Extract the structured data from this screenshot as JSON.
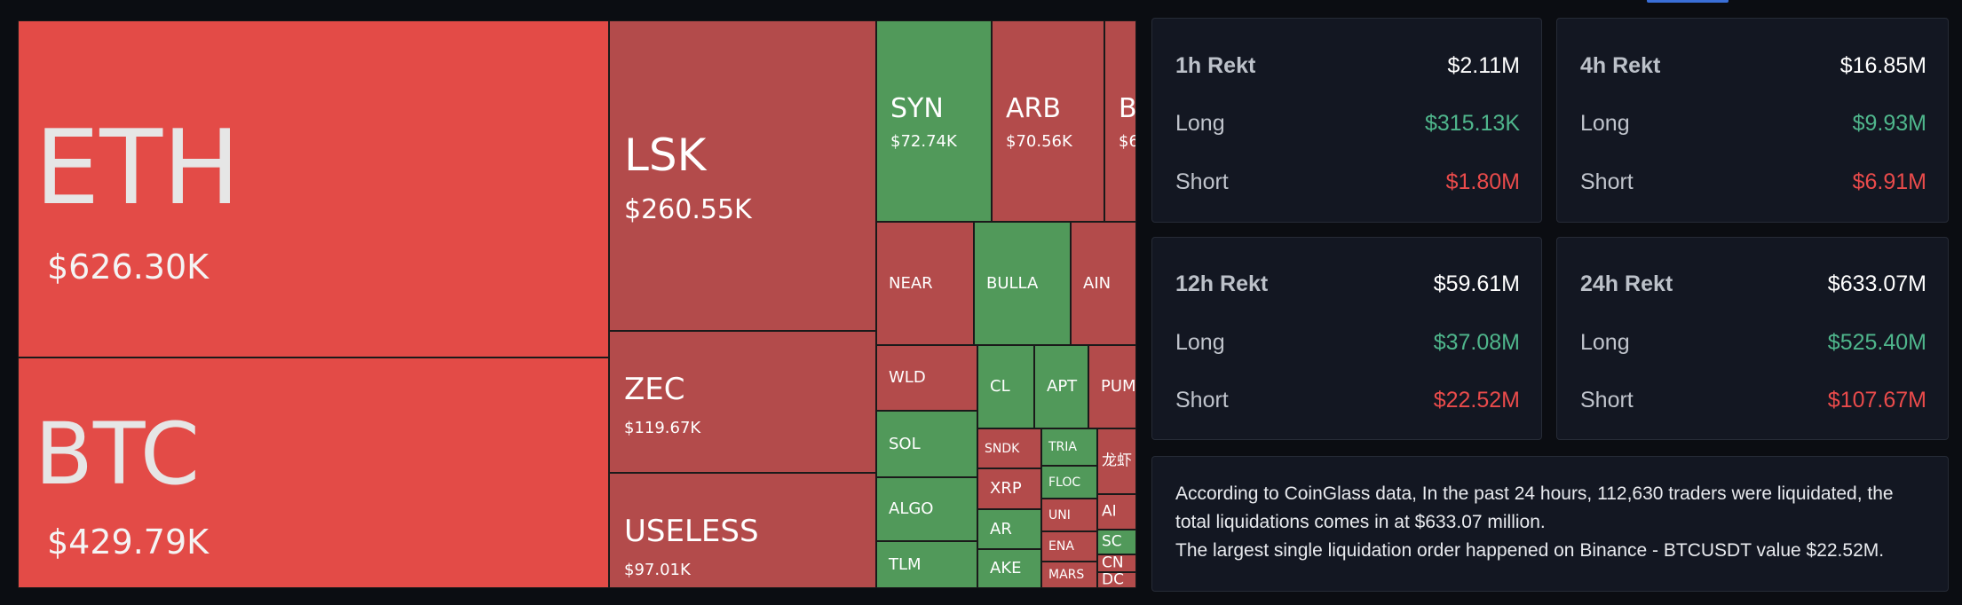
{
  "treemap": {
    "tiles": [
      {
        "name": "tile-eth",
        "symbol": "ETH",
        "value": "$626.30K",
        "color": "bright",
        "size": "s-xl",
        "l": 0,
        "t": 0,
        "w": 666,
        "h": 380
      },
      {
        "name": "tile-btc",
        "symbol": "BTC",
        "value": "$429.79K",
        "color": "bright",
        "size": "s-xl2",
        "l": 0,
        "t": 380,
        "w": 666,
        "h": 260
      },
      {
        "name": "tile-lsk",
        "symbol": "LSK",
        "value": "$260.55K",
        "color": "red",
        "size": "s-lg",
        "l": 666,
        "t": 0,
        "w": 301,
        "h": 350
      },
      {
        "name": "tile-zec",
        "symbol": "ZEC",
        "value": "$119.67K",
        "color": "red",
        "size": "s-md",
        "l": 666,
        "t": 350,
        "w": 301,
        "h": 160
      },
      {
        "name": "tile-useless",
        "symbol": "USELESS",
        "value": "$97.01K",
        "color": "red",
        "size": "s-md",
        "l": 666,
        "t": 510,
        "w": 301,
        "h": 130
      },
      {
        "name": "tile-syn",
        "symbol": "SYN",
        "value": "$72.74K",
        "color": "green",
        "size": "s-sm",
        "l": 967,
        "t": 0,
        "w": 130,
        "h": 227
      },
      {
        "name": "tile-arb",
        "symbol": "ARB",
        "value": "$70.56K",
        "color": "red",
        "size": "s-sm",
        "l": 1097,
        "t": 0,
        "w": 127,
        "h": 227
      },
      {
        "name": "tile-b",
        "symbol": "B",
        "value": "$6",
        "color": "red",
        "size": "s-sm",
        "l": 1224,
        "t": 0,
        "w": 36,
        "h": 227
      },
      {
        "name": "tile-near",
        "symbol": "NEAR",
        "value": "",
        "color": "red",
        "size": "s-xs",
        "l": 967,
        "t": 227,
        "w": 110,
        "h": 139
      },
      {
        "name": "tile-bulla",
        "symbol": "BULLA",
        "value": "",
        "color": "green",
        "size": "s-xs",
        "l": 1077,
        "t": 227,
        "w": 109,
        "h": 139
      },
      {
        "name": "tile-ain",
        "symbol": "AIN",
        "value": "",
        "color": "red",
        "size": "s-xs",
        "l": 1186,
        "t": 227,
        "w": 74,
        "h": 139
      },
      {
        "name": "tile-wld",
        "symbol": "WLD",
        "value": "",
        "color": "red",
        "size": "s-xs",
        "l": 967,
        "t": 366,
        "w": 114,
        "h": 74
      },
      {
        "name": "tile-sol",
        "symbol": "SOL",
        "value": "",
        "color": "green",
        "size": "s-xs",
        "l": 967,
        "t": 440,
        "w": 114,
        "h": 75
      },
      {
        "name": "tile-algo",
        "symbol": "ALGO",
        "value": "",
        "color": "green",
        "size": "s-xs",
        "l": 967,
        "t": 515,
        "w": 114,
        "h": 72
      },
      {
        "name": "tile-tlm",
        "symbol": "TLM",
        "value": "",
        "color": "green",
        "size": "s-xs",
        "l": 967,
        "t": 587,
        "w": 114,
        "h": 53
      },
      {
        "name": "tile-cl",
        "symbol": "CL",
        "value": "",
        "color": "green",
        "size": "s-xs",
        "l": 1081,
        "t": 366,
        "w": 64,
        "h": 94
      },
      {
        "name": "tile-apt",
        "symbol": "APT",
        "value": "",
        "color": "green",
        "size": "s-xs",
        "l": 1145,
        "t": 366,
        "w": 61,
        "h": 94
      },
      {
        "name": "tile-pum",
        "symbol": "PUM",
        "value": "",
        "color": "red",
        "size": "s-xs",
        "l": 1206,
        "t": 366,
        "w": 54,
        "h": 94
      },
      {
        "name": "tile-sndk",
        "symbol": "SNDK",
        "value": "",
        "color": "red",
        "size": "s-xxs",
        "l": 1081,
        "t": 460,
        "w": 72,
        "h": 45
      },
      {
        "name": "tile-xrp",
        "symbol": "XRP",
        "value": "",
        "color": "red",
        "size": "s-xs",
        "l": 1081,
        "t": 505,
        "w": 72,
        "h": 46
      },
      {
        "name": "tile-ar",
        "symbol": "AR",
        "value": "",
        "color": "green",
        "size": "s-xs",
        "l": 1081,
        "t": 551,
        "w": 72,
        "h": 45
      },
      {
        "name": "tile-ake",
        "symbol": "AKE",
        "value": "",
        "color": "green",
        "size": "s-xs",
        "l": 1081,
        "t": 596,
        "w": 72,
        "h": 44
      },
      {
        "name": "tile-tria",
        "symbol": "TRIA",
        "value": "",
        "color": "green",
        "size": "s-xxs",
        "l": 1153,
        "t": 460,
        "w": 63,
        "h": 42
      },
      {
        "name": "tile-floc",
        "symbol": "FLOC",
        "value": "",
        "color": "green",
        "size": "s-xxs",
        "l": 1153,
        "t": 502,
        "w": 63,
        "h": 37
      },
      {
        "name": "tile-uni",
        "symbol": "UNI",
        "value": "",
        "color": "red",
        "size": "s-xxs",
        "l": 1153,
        "t": 539,
        "w": 63,
        "h": 37
      },
      {
        "name": "tile-ena",
        "symbol": "ENA",
        "value": "",
        "color": "red",
        "size": "s-xxs",
        "l": 1153,
        "t": 576,
        "w": 63,
        "h": 34
      },
      {
        "name": "tile-mars",
        "symbol": "MARS",
        "value": "",
        "color": "red",
        "size": "s-xxs",
        "l": 1153,
        "t": 610,
        "w": 63,
        "h": 30
      },
      {
        "name": "tile-long-shrimp",
        "symbol": "龙虾",
        "value": "",
        "color": "red",
        "size": "s-tiny",
        "l": 1216,
        "t": 460,
        "w": 44,
        "h": 74
      },
      {
        "name": "tile-ai",
        "symbol": "AI",
        "value": "",
        "color": "red",
        "size": "s-tiny",
        "l": 1216,
        "t": 534,
        "w": 44,
        "h": 40
      },
      {
        "name": "tile-sc",
        "symbol": "SC",
        "value": "",
        "color": "green",
        "size": "s-tiny",
        "l": 1216,
        "t": 574,
        "w": 44,
        "h": 28
      },
      {
        "name": "tile-cn",
        "symbol": "CN",
        "value": "",
        "color": "red",
        "size": "s-tiny",
        "l": 1216,
        "t": 602,
        "w": 44,
        "h": 20
      },
      {
        "name": "tile-dc",
        "symbol": "DC",
        "value": "",
        "color": "red",
        "size": "s-tiny",
        "l": 1216,
        "t": 622,
        "w": 44,
        "h": 18
      }
    ]
  },
  "stats": {
    "cards": [
      {
        "name": "card-1h",
        "title": "1h Rekt",
        "total": "$2.11M",
        "long_label": "Long",
        "long": "$315.13K",
        "short_label": "Short",
        "short": "$1.80M"
      },
      {
        "name": "card-4h",
        "title": "4h Rekt",
        "total": "$16.85M",
        "long_label": "Long",
        "long": "$9.93M",
        "short_label": "Short",
        "short": "$6.91M"
      },
      {
        "name": "card-12h",
        "title": "12h Rekt",
        "total": "$59.61M",
        "long_label": "Long",
        "long": "$37.08M",
        "short_label": "Short",
        "short": "$22.52M"
      },
      {
        "name": "card-24h",
        "title": "24h Rekt",
        "total": "$633.07M",
        "long_label": "Long",
        "long": "$525.40M",
        "short_label": "Short",
        "short": "$107.67M"
      }
    ]
  },
  "summary": {
    "line1": "According to CoinGlass data, In the past 24 hours, 112,630 traders were liquidated, the total liquidations comes in at $633.07 million.",
    "line2": "The largest single liquidation order happened on Binance - BTCUSDT value $22.52M."
  },
  "colors": {
    "long": "#4fb68c",
    "short": "#ea4b4b",
    "tile_red": "#b34b4b",
    "tile_bright_red": "#e34b47",
    "tile_green": "#51995a"
  }
}
